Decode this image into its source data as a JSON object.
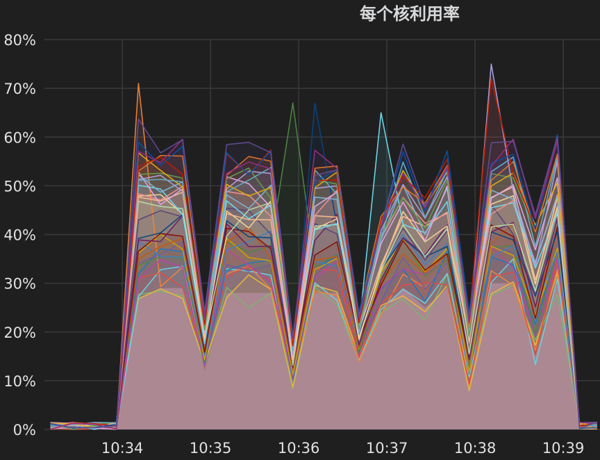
{
  "panel": {
    "title": "每个核利用率"
  },
  "colors": {
    "background": "#1f1f20",
    "grid": "#3a3a3c",
    "text": "#e2e2e2",
    "fill": "#b08a99",
    "palette": [
      "#7eb26d",
      "#eab839",
      "#6ed0e0",
      "#ef843c",
      "#e24d42",
      "#1f78c1",
      "#ba43a9",
      "#705da0",
      "#508642",
      "#cca300",
      "#447ebc",
      "#c15c17",
      "#890f02",
      "#0a437c",
      "#6d1f62",
      "#584477",
      "#b7dbab",
      "#f4d598",
      "#70dbed",
      "#f9ba8f",
      "#f29191",
      "#82b5d8",
      "#e5a8e2",
      "#aea2e0",
      "#629e51",
      "#e5ac0e",
      "#64b0c8",
      "#e0752d",
      "#bf1b00",
      "#0a50a1",
      "#962d82",
      "#614d93"
    ]
  },
  "chart_data": {
    "type": "area",
    "title": "每个核利用率",
    "xlabel": "",
    "ylabel": "",
    "x_ticks": [
      "10:34",
      "10:35",
      "10:36",
      "10:37",
      "10:38",
      "10:39"
    ],
    "y_ticks": [
      "0%",
      "10%",
      "20%",
      "30%",
      "40%",
      "50%",
      "60%",
      "70%",
      "80%"
    ],
    "ylim": [
      0,
      80
    ],
    "x_range": [
      "10:33:07",
      "10:39:25"
    ],
    "grid": true,
    "legend": "none",
    "series_count": 32,
    "x": [
      "10:33:11",
      "10:33:26",
      "10:33:41",
      "10:33:56",
      "10:34:11",
      "10:34:26",
      "10:34:41",
      "10:34:56",
      "10:35:11",
      "10:35:26",
      "10:35:41",
      "10:35:56",
      "10:36:11",
      "10:36:26",
      "10:36:41",
      "10:36:56",
      "10:37:11",
      "10:37:26",
      "10:37:41",
      "10:37:56",
      "10:38:11",
      "10:38:26",
      "10:38:41",
      "10:38:56",
      "10:39:11",
      "10:39:23"
    ],
    "envelope": {
      "upper": [
        1,
        1,
        1,
        1,
        60,
        58,
        58,
        24,
        57,
        57,
        57,
        19,
        55,
        56,
        24,
        44,
        56,
        48,
        56,
        24,
        57,
        58,
        44,
        60,
        1,
        1
      ],
      "lower": [
        0,
        0,
        0,
        0,
        27,
        29,
        29,
        12,
        28,
        28,
        28,
        9,
        28,
        28,
        14,
        24,
        29,
        25,
        29,
        9,
        30,
        30,
        15,
        30,
        0,
        0
      ]
    },
    "peaks": [
      {
        "x": "10:34:17",
        "y": 71
      },
      {
        "x": "10:35:51",
        "y": 67
      },
      {
        "x": "10:36:05",
        "y": 67
      },
      {
        "x": "10:36:58",
        "y": 65
      },
      {
        "x": "10:38:13",
        "y": 75
      },
      {
        "x": "10:38:13",
        "y": 72
      }
    ]
  }
}
